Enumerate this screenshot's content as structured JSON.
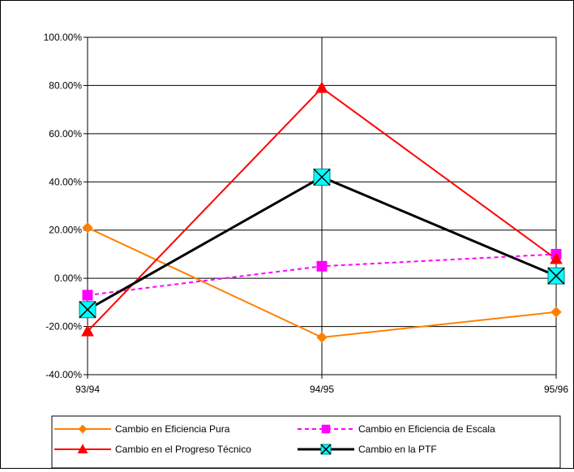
{
  "chart_data": {
    "type": "line",
    "categories": [
      "93/94",
      "94/95",
      "95/96"
    ],
    "ylim": [
      -0.4,
      1.0
    ],
    "yticks": [
      "100.00%",
      "80.00%",
      "60.00%",
      "40.00%",
      "20.00%",
      "0.00%",
      "-20.00%",
      "-40.00%"
    ],
    "ytick_values": [
      1.0,
      0.8,
      0.6,
      0.4,
      0.2,
      0.0,
      -0.2,
      -0.4
    ],
    "grid": true,
    "legend_position": "bottom",
    "series": [
      {
        "name": "Cambio en Eficiencia Pura",
        "values": [
          0.21,
          -0.245,
          -0.14
        ],
        "color": "#FF8000",
        "marker": "diamond",
        "dash": false,
        "width": 2
      },
      {
        "name": "Cambio en Eficiencia de Escala",
        "values": [
          -0.07,
          0.05,
          0.1
        ],
        "color": "#FF00FF",
        "marker": "square",
        "dash": true,
        "width": 2
      },
      {
        "name": "Cambio en el Progreso Técnico",
        "values": [
          -0.22,
          0.79,
          0.08
        ],
        "color": "#FF0000",
        "marker": "triangle",
        "dash": false,
        "width": 2
      },
      {
        "name": "Cambio en la PTF",
        "values": [
          -0.13,
          0.42,
          0.01
        ],
        "color": "#000000",
        "marker": "xbox",
        "marker_fill": "#00FFFF",
        "dash": false,
        "width": 3
      }
    ]
  }
}
